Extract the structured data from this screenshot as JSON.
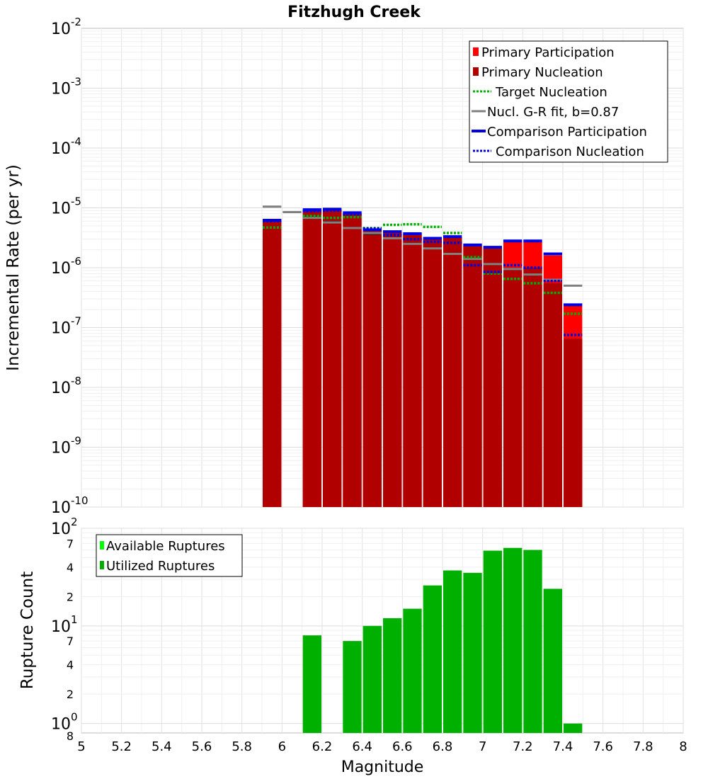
{
  "chart_data": [
    {
      "type": "bar",
      "title": "Fitzhugh Creek",
      "ylabel": "Incremental Rate (per yr)",
      "xlabel": "",
      "ylog": true,
      "xlim": [
        5,
        8
      ],
      "ylim": [
        1e-10,
        0.01
      ],
      "bin_width": 0.1,
      "ytick_labels": [
        {
          "base": "10",
          "exp": "-2"
        },
        {
          "base": "10",
          "exp": "-3"
        },
        {
          "base": "10",
          "exp": "-4"
        },
        {
          "base": "10",
          "exp": "-5"
        },
        {
          "base": "10",
          "exp": "-6"
        },
        {
          "base": "10",
          "exp": "-7"
        },
        {
          "base": "10",
          "exp": "-8"
        },
        {
          "base": "10",
          "exp": "-9"
        },
        {
          "base": "10",
          "exp": "-10"
        }
      ],
      "legend_position": "top-right",
      "legend": [
        "Primary Participation",
        "Primary Nucleation",
        "Target Nucleation",
        "Nucl. G-R fit, b=0.87",
        "Comparison Participation",
        "Comparison Nucleation"
      ],
      "colors": {
        "primary_participation": "#ff0000",
        "primary_nucleation": "#b00000",
        "target_nucleation": "#00b000",
        "gr_fit": "#808080",
        "comparison_participation": "#0000e0",
        "comparison_nucleation": "#0000e0",
        "nucleation_marker": "#222222"
      },
      "series": [
        {
          "name": "Primary Participation",
          "x": [
            5.95,
            6.15,
            6.25,
            6.35,
            6.45,
            6.55,
            6.65,
            6.75,
            6.85,
            6.95,
            7.05,
            7.15,
            7.25,
            7.35,
            7.45
          ],
          "values": [
            6e-06,
            9e-06,
            9.3e-06,
            8e-06,
            4.2e-06,
            3.9e-06,
            3.6e-06,
            3e-06,
            3.2e-06,
            2.3e-06,
            2.1e-06,
            2.7e-06,
            2.7e-06,
            1.6e-06,
            2.3e-07
          ]
        },
        {
          "name": "Primary Nucleation",
          "x": [
            5.95,
            6.15,
            6.25,
            6.35,
            6.45,
            6.55,
            6.65,
            6.75,
            6.85,
            6.95,
            7.05,
            7.15,
            7.25,
            7.35,
            7.45
          ],
          "values": [
            6e-06,
            9e-06,
            9.3e-06,
            8e-06,
            4.2e-06,
            3.9e-06,
            3.6e-06,
            3e-06,
            3.2e-06,
            2.3e-06,
            2.1e-06,
            1e-06,
            1e-06,
            5.5e-07,
            6.5e-08
          ]
        },
        {
          "name": "Target Nucleation",
          "x": [
            5.95,
            6.15,
            6.25,
            6.35,
            6.45,
            6.55,
            6.65,
            6.75,
            6.85,
            6.95,
            7.05,
            7.15,
            7.25,
            7.35,
            7.45
          ],
          "values": [
            4.7e-06,
            7.3e-06,
            6.8e-06,
            7e-06,
            4.6e-06,
            5.2e-06,
            5.3e-06,
            4.8e-06,
            3.8e-06,
            1.5e-06,
            8e-07,
            6.5e-07,
            5.5e-07,
            3.8e-07,
            1.7e-07
          ]
        },
        {
          "name": "Nucl. G-R fit, b=0.87",
          "x": [
            5.95,
            6.05,
            6.15,
            6.25,
            6.35,
            6.45,
            6.55,
            6.65,
            6.75,
            6.85,
            6.95,
            7.05,
            7.15,
            7.25,
            7.35,
            7.45
          ],
          "values": [
            1.05e-05,
            8.5e-06,
            6.8e-06,
            5.7e-06,
            4.6e-06,
            3.8e-06,
            3.1e-06,
            2.5e-06,
            2.1e-06,
            1.7e-06,
            1.4e-06,
            1.15e-06,
            9.5e-07,
            7.7e-07,
            6.3e-07,
            5e-07
          ]
        },
        {
          "name": "Comparison Participation",
          "x": [
            5.95,
            6.15,
            6.25,
            6.35,
            6.45,
            6.55,
            6.65,
            6.75,
            6.85,
            6.95,
            7.05,
            7.15,
            7.25,
            7.35,
            7.45
          ],
          "values": [
            6.2e-06,
            9.3e-06,
            9.5e-06,
            8.3e-06,
            4.3e-06,
            4e-06,
            3.7e-06,
            3.1e-06,
            3.3e-06,
            2.4e-06,
            2.2e-06,
            2.8e-06,
            2.8e-06,
            1.7e-06,
            2.4e-07
          ]
        },
        {
          "name": "Comparison Nucleation",
          "x": [
            5.95,
            6.15,
            6.25,
            6.35,
            6.45,
            6.55,
            6.65,
            6.75,
            6.85,
            6.95,
            7.05,
            7.15,
            7.25,
            7.35,
            7.45
          ],
          "values": [
            6e-06,
            8.8e-06,
            9e-06,
            7.8e-06,
            4.5e-06,
            3.5e-06,
            3e-06,
            2.7e-06,
            2.6e-06,
            1.1e-06,
            8.5e-07,
            1.1e-06,
            1e-06,
            6e-07,
            7.5e-08
          ]
        },
        {
          "name": "",
          "style": "short black nucleation marker",
          "x": [
            6.15,
            6.25,
            6.35,
            6.45,
            6.55,
            6.65,
            6.75,
            6.85,
            6.95,
            7.05,
            7.15,
            7.25
          ],
          "values": [
            7e-06,
            5.8e-06,
            4.6e-06,
            3.7e-06,
            3.1e-06,
            2.5e-06,
            2.1e-06,
            1.7e-06,
            1.4e-06,
            1.15e-06,
            9.5e-07,
            7.7e-07
          ]
        }
      ]
    },
    {
      "type": "bar",
      "title": "",
      "ylabel": "Rupture Count",
      "xlabel": "Magnitude",
      "ylog": true,
      "xlim": [
        5,
        8
      ],
      "ylim": [
        0.8,
        100
      ],
      "bin_width": 0.1,
      "xticks": [
        "5",
        "5.2",
        "5.4",
        "5.6",
        "5.8",
        "6",
        "6.2",
        "6.4",
        "6.6",
        "6.8",
        "7",
        "7.2",
        "7.4",
        "7.6",
        "7.8",
        "8"
      ],
      "ytick_labels": [
        {
          "base": "10",
          "exp": "2"
        },
        {
          "base": "10",
          "exp": "1"
        },
        {
          "base": "10",
          "exp": "0"
        }
      ],
      "minor_tick_labels": [
        {
          "value": 70,
          "label": "7"
        },
        {
          "value": 40,
          "label": "4"
        },
        {
          "value": 20,
          "label": "2"
        },
        {
          "value": 7,
          "label": "7"
        },
        {
          "value": 4,
          "label": "4"
        },
        {
          "value": 2,
          "label": "2"
        },
        {
          "value": 0.8,
          "label": "8"
        }
      ],
      "legend_position": "top-left",
      "legend": [
        "Available Ruptures",
        "Utilized Ruptures"
      ],
      "colors": {
        "available": "#00ff00",
        "utilized": "#00b000"
      },
      "series": [
        {
          "name": "Utilized Ruptures",
          "x": [
            6.15,
            6.35,
            6.45,
            6.55,
            6.65,
            6.75,
            6.85,
            6.95,
            7.05,
            7.15,
            7.25,
            7.35,
            7.45
          ],
          "values": [
            8,
            7,
            10,
            12,
            15,
            26,
            37,
            35,
            59,
            63,
            60,
            24,
            1
          ]
        }
      ]
    }
  ]
}
